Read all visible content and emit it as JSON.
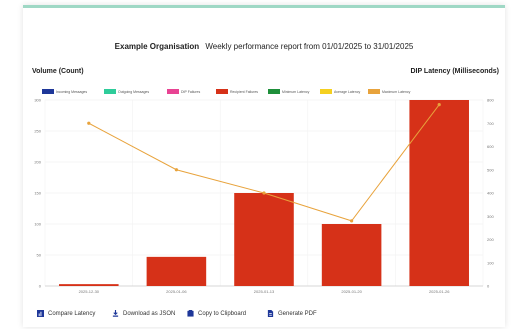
{
  "header": {
    "org": "Example Organisation",
    "subtitle": "Weekly performance report from 01/01/2025 to 31/01/2025"
  },
  "axes": {
    "left_title": "Volume (Count)",
    "right_title": "DIP Latency (Milliseconds)"
  },
  "legend": [
    {
      "label": "Incoming Messages",
      "color": "#1e3799"
    },
    {
      "label": "Outgoing Messages",
      "color": "#2ecc9a"
    },
    {
      "label": "DIP Failures",
      "color": "#e84393"
    },
    {
      "label": "Recipient Failures",
      "color": "#d63118"
    },
    {
      "label": "Minimum Latency",
      "color": "#1e8f3a"
    },
    {
      "label": "Average Latency",
      "color": "#f5d020"
    },
    {
      "label": "Maximum Latency",
      "color": "#e8a33c"
    }
  ],
  "toolbar": {
    "compare": "Compare Latency",
    "download": "Download as JSON",
    "copy": "Copy to Clipboard",
    "pdf": "Generate PDF"
  },
  "chart_data": {
    "type": "bar",
    "categories": [
      "2025-12-30",
      "2025-01-06",
      "2025-01-13",
      "2025-01-20",
      "2025-01-26"
    ],
    "series": [
      {
        "name": "Recipient Failures",
        "type": "bar",
        "axis": "left",
        "color": "#d63118",
        "values": [
          3,
          47,
          150,
          100,
          300
        ]
      },
      {
        "name": "Maximum Latency",
        "type": "line",
        "axis": "right",
        "color": "#e8a33c",
        "values": [
          700,
          500,
          400,
          280,
          780
        ]
      }
    ],
    "y_left": {
      "min": 0,
      "max": 300,
      "ticks": [
        0,
        50,
        100,
        150,
        200,
        250,
        300
      ]
    },
    "y_right": {
      "min": 0,
      "max": 800,
      "ticks": [
        0,
        100,
        200,
        300,
        400,
        500,
        600,
        700,
        800
      ]
    },
    "grid": true
  }
}
